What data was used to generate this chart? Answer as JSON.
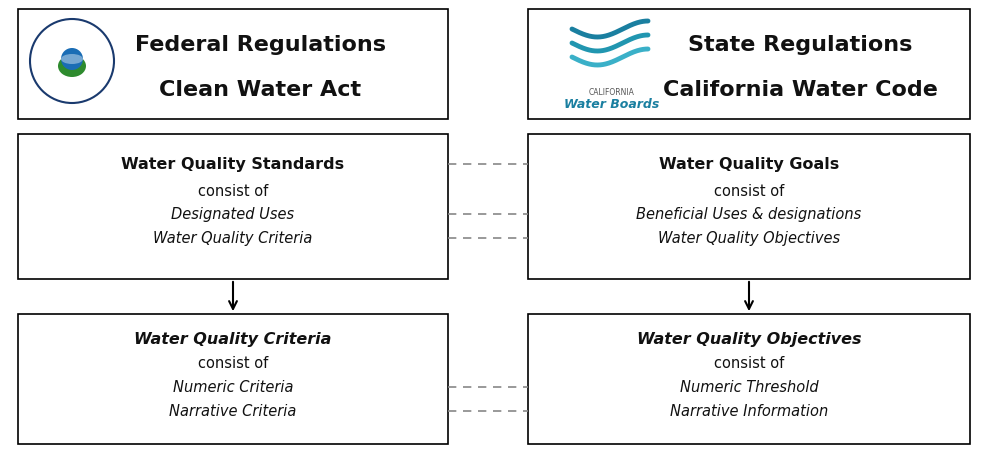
{
  "bg_color": "#ffffff",
  "box_edge_color": "#000000",
  "box_face_color": "#ffffff",
  "dashed_line_color": "#888888",
  "arrow_color": "#000000",
  "header_left": {
    "title1": "Federal Regulations",
    "title2": "Clean Water Act"
  },
  "header_right": {
    "title1": "State Regulations",
    "title2": "California Water Code"
  },
  "box_top_left": {
    "line1": "Water Quality Standards",
    "line2": "consist of",
    "line3": "Designated Uses",
    "line4": "Water Quality Criteria"
  },
  "box_top_right": {
    "line1": "Water Quality Goals",
    "line2": "consist of",
    "line3": "Beneficial Uses & designations",
    "line4": "Water Quality Objectives"
  },
  "box_bottom_left": {
    "line1": "Water Quality Criteria",
    "line2": "consist of",
    "line3": "Numeric Criteria",
    "line4": "Narrative Criteria"
  },
  "box_bottom_right": {
    "line1": "Water Quality Objectives",
    "line2": "consist of",
    "line3": "Numeric Threshold",
    "line4": "Narrative Information"
  }
}
